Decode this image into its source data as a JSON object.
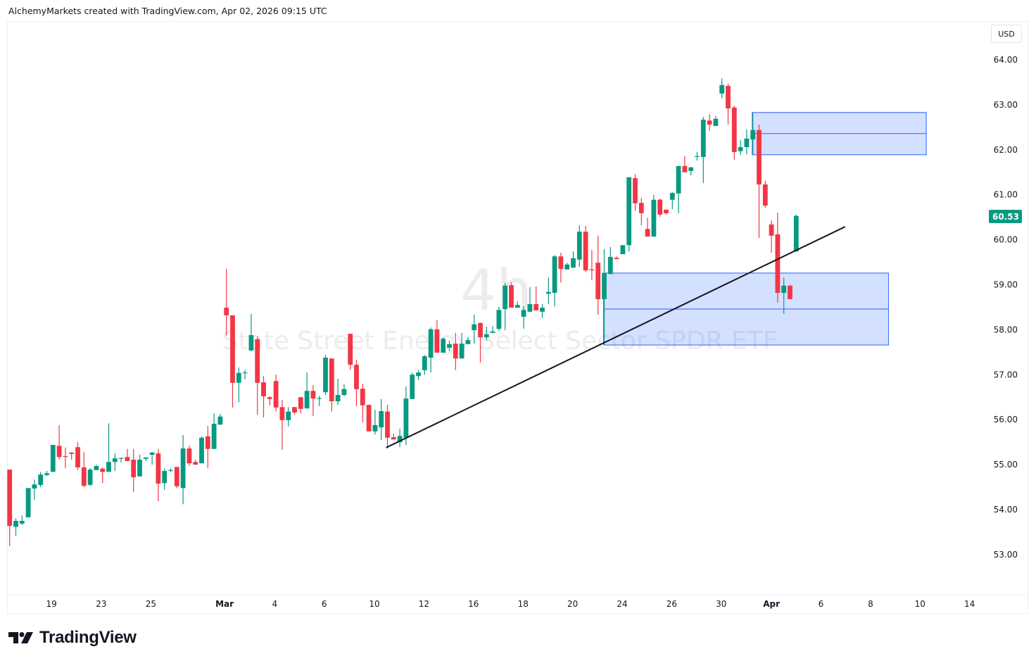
{
  "header": {
    "attribution": "AlchemyMarkets created with TradingView.com, Apr 02, 2026 09:15 UTC"
  },
  "price_scale": {
    "currency": "USD",
    "last_price_label": "60.53"
  },
  "watermark": {
    "interval": "4h",
    "symbol_name": "State Street Energy Select Sector SPDR ETF"
  },
  "branding": {
    "logo_text": "TradingView"
  },
  "colors": {
    "up": "#089981",
    "down": "#F23645",
    "zone_fill": "rgba(41,98,255,0.2)",
    "zone_stroke": "#2962FF",
    "trendline": "#131722"
  },
  "chart_data": {
    "type": "candlestick",
    "title": "State Street Energy Select Sector SPDR ETF",
    "interval": "4h",
    "ylim": [
      52.25,
      64.6
    ],
    "y_ticks": [
      "64.00",
      "63.00",
      "62.00",
      "61.00",
      "60.00",
      "59.00",
      "58.00",
      "57.00",
      "56.00",
      "55.00",
      "54.00",
      "53.00"
    ],
    "y_tick_values": [
      64,
      63,
      62,
      61,
      60,
      59,
      58,
      57,
      56,
      55,
      54,
      53
    ],
    "x_ticks": [
      {
        "label": "19",
        "bar": 6.75
      },
      {
        "label": "23",
        "bar": 14.8
      },
      {
        "label": "25",
        "bar": 22.8
      },
      {
        "label": "Mar",
        "bar": 34.7,
        "bold": true
      },
      {
        "label": "4",
        "bar": 42.8
      },
      {
        "label": "6",
        "bar": 50.8
      },
      {
        "label": "10",
        "bar": 58.9
      },
      {
        "label": "12",
        "bar": 66.9
      },
      {
        "label": "16",
        "bar": 74.9
      },
      {
        "label": "18",
        "bar": 82.9
      },
      {
        "label": "20",
        "bar": 90.9
      },
      {
        "label": "24",
        "bar": 98.9
      },
      {
        "label": "26",
        "bar": 106.9
      },
      {
        "label": "30",
        "bar": 114.9
      },
      {
        "label": "Apr",
        "bar": 123,
        "bold": true
      },
      {
        "label": "6",
        "bar": 131
      },
      {
        "label": "8",
        "bar": 139
      },
      {
        "label": "10",
        "bar": 147
      },
      {
        "label": "14",
        "bar": 155
      }
    ],
    "ohlc_fields": [
      "open",
      "high",
      "low",
      "close"
    ],
    "candles": [
      [
        54.89,
        54.89,
        53.19,
        53.64
      ],
      [
        53.62,
        53.81,
        53.42,
        53.75
      ],
      [
        53.69,
        53.87,
        53.66,
        53.75
      ],
      [
        53.83,
        54.48,
        53.83,
        54.48
      ],
      [
        54.47,
        54.67,
        54.22,
        54.56
      ],
      [
        54.55,
        54.84,
        54.5,
        54.78
      ],
      [
        54.77,
        54.86,
        54.75,
        54.81
      ],
      [
        54.84,
        55.44,
        54.84,
        55.44
      ],
      [
        55.42,
        55.88,
        55.11,
        55.17
      ],
      [
        55.19,
        55.38,
        54.92,
        55.18
      ],
      [
        55.27,
        55.28,
        55.11,
        55.24
      ],
      [
        55.39,
        55.5,
        54.88,
        54.94
      ],
      [
        54.94,
        55.28,
        54.5,
        54.53
      ],
      [
        54.55,
        54.92,
        54.53,
        54.89
      ],
      [
        54.88,
        55.0,
        54.88,
        54.97
      ],
      [
        54.91,
        54.94,
        54.59,
        54.84
      ],
      [
        54.84,
        55.92,
        54.84,
        55.06
      ],
      [
        55.06,
        55.25,
        54.86,
        55.14
      ],
      [
        55.14,
        55.16,
        55.05,
        55.15
      ],
      [
        55.17,
        55.35,
        55.08,
        55.08
      ],
      [
        55.11,
        55.35,
        54.39,
        54.72
      ],
      [
        54.74,
        55.22,
        54.74,
        55.11
      ],
      [
        55.13,
        55.16,
        55.08,
        55.16
      ],
      [
        55.22,
        55.28,
        55.0,
        55.27
      ],
      [
        55.25,
        55.35,
        54.19,
        54.58
      ],
      [
        54.59,
        54.91,
        54.44,
        54.86
      ],
      [
        54.87,
        54.92,
        54.83,
        54.88
      ],
      [
        54.95,
        54.95,
        54.48,
        54.52
      ],
      [
        54.48,
        55.66,
        54.12,
        55.36
      ],
      [
        55.36,
        55.42,
        54.97,
        55.03
      ],
      [
        55.06,
        55.11,
        55.0,
        55.0
      ],
      [
        55.03,
        55.63,
        55.03,
        55.6
      ],
      [
        55.63,
        55.86,
        54.92,
        55.35
      ],
      [
        55.35,
        56.14,
        55.35,
        55.91
      ],
      [
        55.89,
        56.13,
        55.89,
        56.07
      ],
      [
        58.49,
        59.35,
        57.87,
        58.32
      ],
      [
        58.32,
        58.32,
        56.27,
        56.82
      ],
      [
        56.82,
        57.16,
        56.39,
        57.04
      ],
      [
        57.04,
        57.11,
        56.9,
        57.05
      ],
      [
        57.54,
        58.35,
        57.52,
        57.88
      ],
      [
        57.79,
        57.85,
        56.11,
        56.82
      ],
      [
        56.83,
        56.97,
        56.05,
        56.52
      ],
      [
        56.5,
        56.52,
        56.32,
        56.46
      ],
      [
        56.86,
        57.0,
        56.18,
        56.27
      ],
      [
        56.28,
        56.44,
        55.33,
        55.99
      ],
      [
        55.99,
        56.28,
        55.85,
        56.18
      ],
      [
        56.28,
        56.28,
        56.11,
        56.16
      ],
      [
        56.5,
        56.5,
        56.14,
        56.24
      ],
      [
        56.25,
        57.05,
        56.25,
        56.64
      ],
      [
        56.64,
        56.77,
        56.08,
        56.47
      ],
      [
        56.47,
        56.53,
        56.3,
        56.48
      ],
      [
        56.61,
        57.44,
        56.55,
        57.38
      ],
      [
        57.36,
        57.36,
        56.18,
        56.41
      ],
      [
        56.41,
        56.91,
        56.33,
        56.55
      ],
      [
        56.55,
        56.79,
        56.52,
        56.68
      ],
      [
        57.91,
        57.91,
        57.11,
        57.22
      ],
      [
        57.22,
        57.33,
        56.3,
        56.68
      ],
      [
        56.69,
        56.8,
        55.94,
        56.32
      ],
      [
        56.33,
        56.33,
        55.74,
        55.74
      ],
      [
        55.74,
        56.22,
        55.67,
        55.88
      ],
      [
        55.83,
        56.46,
        55.55,
        56.19
      ],
      [
        56.18,
        56.33,
        55.36,
        55.6
      ],
      [
        55.61,
        55.69,
        55.56,
        55.56
      ],
      [
        55.5,
        55.8,
        55.39,
        55.64
      ],
      [
        55.6,
        56.74,
        55.44,
        56.47
      ],
      [
        56.46,
        57.04,
        56.46,
        57.0
      ],
      [
        56.97,
        57.11,
        56.88,
        57.05
      ],
      [
        57.1,
        57.44,
        57.0,
        57.41
      ],
      [
        57.38,
        58.05,
        57.05,
        58.01
      ],
      [
        58.01,
        58.21,
        57.49,
        57.49
      ],
      [
        57.49,
        57.83,
        57.49,
        57.8
      ],
      [
        57.6,
        57.76,
        57.52,
        57.68
      ],
      [
        57.69,
        57.93,
        57.1,
        57.36
      ],
      [
        57.36,
        57.93,
        57.36,
        57.69
      ],
      [
        57.68,
        57.83,
        57.68,
        57.77
      ],
      [
        57.99,
        58.33,
        57.69,
        58.12
      ],
      [
        58.15,
        58.16,
        57.27,
        57.83
      ],
      [
        57.83,
        58.07,
        57.76,
        57.9
      ],
      [
        57.93,
        58.08,
        57.93,
        57.96
      ],
      [
        58.02,
        58.51,
        57.97,
        58.44
      ],
      [
        58.46,
        59.04,
        57.99,
        58.98
      ],
      [
        58.99,
        59.05,
        58.49,
        58.49
      ],
      [
        58.49,
        58.63,
        58.49,
        58.55
      ],
      [
        58.29,
        58.52,
        58.02,
        58.44
      ],
      [
        58.4,
        58.95,
        58.4,
        58.57
      ],
      [
        58.57,
        58.96,
        58.43,
        58.43
      ],
      [
        58.4,
        58.57,
        58.26,
        58.49
      ],
      [
        58.8,
        59.16,
        58.57,
        58.84
      ],
      [
        58.82,
        59.66,
        58.52,
        59.63
      ],
      [
        59.63,
        59.71,
        59.05,
        59.35
      ],
      [
        59.34,
        59.49,
        59.34,
        59.45
      ],
      [
        59.38,
        59.74,
        59.38,
        59.59
      ],
      [
        59.56,
        60.32,
        59.4,
        60.18
      ],
      [
        60.18,
        60.31,
        59.29,
        59.32
      ],
      [
        59.34,
        59.77,
        59.1,
        59.32
      ],
      [
        59.49,
        60.09,
        58.33,
        58.68
      ],
      [
        58.68,
        59.79,
        57.66,
        59.26
      ],
      [
        59.24,
        59.84,
        59.23,
        59.62
      ],
      [
        59.6,
        59.63,
        59.57,
        59.57
      ],
      [
        59.68,
        59.88,
        59.68,
        59.88
      ],
      [
        59.88,
        61.39,
        59.74,
        61.39
      ],
      [
        61.37,
        61.46,
        60.64,
        60.81
      ],
      [
        60.82,
        60.93,
        60.32,
        60.59
      ],
      [
        60.24,
        60.49,
        60.07,
        60.07
      ],
      [
        60.07,
        61.0,
        60.07,
        60.89
      ],
      [
        60.89,
        60.92,
        60.51,
        60.56
      ],
      [
        60.67,
        60.67,
        60.56,
        60.59
      ],
      [
        60.89,
        61.06,
        60.68,
        61.04
      ],
      [
        61.03,
        61.64,
        60.59,
        61.64
      ],
      [
        61.64,
        61.86,
        61.5,
        61.5
      ],
      [
        61.53,
        61.62,
        61.43,
        61.61
      ],
      [
        61.85,
        61.95,
        61.76,
        61.86
      ],
      [
        61.84,
        62.73,
        61.26,
        62.67
      ],
      [
        62.65,
        62.79,
        62.42,
        62.56
      ],
      [
        62.53,
        62.75,
        62.53,
        62.69
      ],
      [
        63.25,
        63.59,
        63.15,
        63.44
      ],
      [
        63.42,
        63.47,
        62.56,
        62.92
      ],
      [
        62.94,
        62.98,
        61.78,
        61.95
      ],
      [
        61.97,
        62.22,
        61.89,
        62.06
      ],
      [
        62.06,
        62.45,
        61.9,
        62.25
      ],
      [
        62.23,
        62.83,
        61.89,
        62.44
      ],
      [
        62.44,
        62.56,
        60.04,
        61.23
      ],
      [
        61.23,
        61.31,
        60.71,
        60.76
      ],
      [
        60.34,
        60.43,
        59.71,
        60.09
      ],
      [
        60.12,
        60.6,
        58.6,
        58.82
      ],
      [
        58.82,
        59.16,
        58.35,
        58.98
      ],
      [
        58.98,
        59.0,
        58.68,
        58.68
      ],
      [
        59.74,
        60.56,
        59.74,
        60.53
      ]
    ],
    "drawings": {
      "trendline": {
        "from": {
          "bar": 60.8,
          "price": 55.38
        },
        "to": {
          "bar": 134.9,
          "price": 60.29
        }
      },
      "zones": [
        {
          "name": "demand-zone",
          "bar_start": 95.9,
          "bar_end": 141.9,
          "top": 59.26,
          "bottom": 57.66,
          "mid": 58.46
        },
        {
          "name": "supply-zone",
          "bar_start": 119.9,
          "bar_end": 148.0,
          "top": 62.83,
          "bottom": 61.89,
          "mid": 62.36
        }
      ]
    }
  }
}
